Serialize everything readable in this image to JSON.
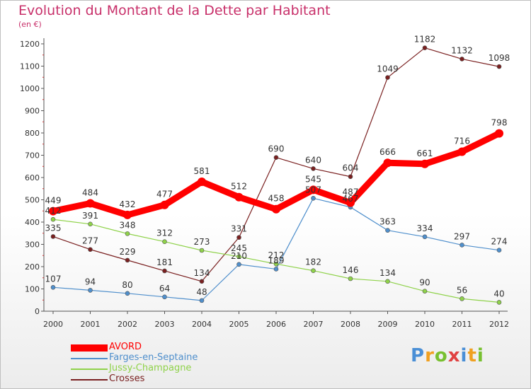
{
  "chart_data": {
    "type": "line",
    "title": "Evolution du Montant de la Dette par Habitant",
    "subtitle": "(en €)",
    "x": [
      "2000",
      "2001",
      "2002",
      "2003",
      "2004",
      "2005",
      "2006",
      "2007",
      "2008",
      "2009",
      "2010",
      "2011",
      "2012"
    ],
    "ylim": [
      0,
      1200
    ],
    "yticks": [
      0,
      100,
      200,
      300,
      400,
      500,
      600,
      700,
      800,
      900,
      1000,
      1100,
      1200
    ],
    "grid": false,
    "legend_position": "bottom-left",
    "series": [
      {
        "name": "AVORD",
        "color": "#ff0000",
        "values": [
          449,
          484,
          432,
          477,
          581,
          512,
          458,
          545,
          487,
          666,
          661,
          716,
          798
        ]
      },
      {
        "name": "Farges-en-Septaine",
        "color": "#4f8fcc",
        "values": [
          107,
          94,
          80,
          64,
          48,
          210,
          189,
          507,
          467,
          363,
          334,
          297,
          274
        ]
      },
      {
        "name": "Jussy-Champagne",
        "color": "#8fd24a",
        "values": [
          412,
          391,
          348,
          312,
          273,
          245,
          212,
          182,
          146,
          134,
          90,
          56,
          40
        ]
      },
      {
        "name": "Crosses",
        "color": "#7a2020",
        "values": [
          335,
          277,
          229,
          181,
          134,
          331,
          690,
          640,
          604,
          1049,
          1182,
          1132,
          1098
        ]
      }
    ]
  },
  "legend": {
    "items": [
      "AVORD",
      "Farges-en-Septaine",
      "Jussy-Champagne",
      "Crosses"
    ]
  },
  "logo": {
    "letters": [
      "P",
      "r",
      "o",
      "x",
      "i",
      "t",
      "i"
    ],
    "colors": [
      "#4a8fd6",
      "#f0a020",
      "#78c030",
      "#e04040",
      "#4a8fd6",
      "#f0a020",
      "#78c030"
    ]
  }
}
